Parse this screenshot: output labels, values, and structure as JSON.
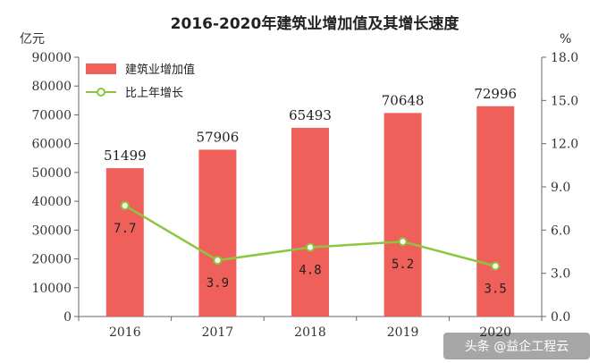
{
  "chart_data": {
    "type": "bar+line",
    "title": "2016-2020年建筑业增加值及其增长速度",
    "categories": [
      "2016",
      "2017",
      "2018",
      "2019",
      "2020"
    ],
    "series": [
      {
        "name": "建筑业增加值",
        "type": "bar",
        "axis": "left",
        "color": "#F0605A",
        "values": [
          51499,
          57906,
          65493,
          70648,
          72996
        ]
      },
      {
        "name": "比上年增长",
        "type": "line",
        "axis": "right",
        "color": "#8CC63F",
        "values": [
          7.7,
          3.9,
          4.8,
          5.2,
          3.5
        ]
      }
    ],
    "bar_value_labels": [
      "51499",
      "57906",
      "65493",
      "70648",
      "72996"
    ],
    "line_value_labels": [
      "7.7",
      "3.9",
      "4.8",
      "5.2",
      "3.5"
    ],
    "y_left": {
      "label": "亿元",
      "ylim": [
        0,
        90000
      ],
      "ticks": [
        "0",
        "10000",
        "20000",
        "30000",
        "40000",
        "50000",
        "60000",
        "70000",
        "80000",
        "90000"
      ]
    },
    "y_right": {
      "label": "%",
      "ylim": [
        0,
        18
      ],
      "ticks": [
        "0.0",
        "3.0",
        "6.0",
        "9.0",
        "12.0",
        "15.0",
        "18.0"
      ]
    },
    "legend": {
      "position": "top-left",
      "entries": [
        "建筑业增加值",
        "比上年增长"
      ]
    },
    "grid": false
  },
  "watermark": "头条 @益企工程云"
}
